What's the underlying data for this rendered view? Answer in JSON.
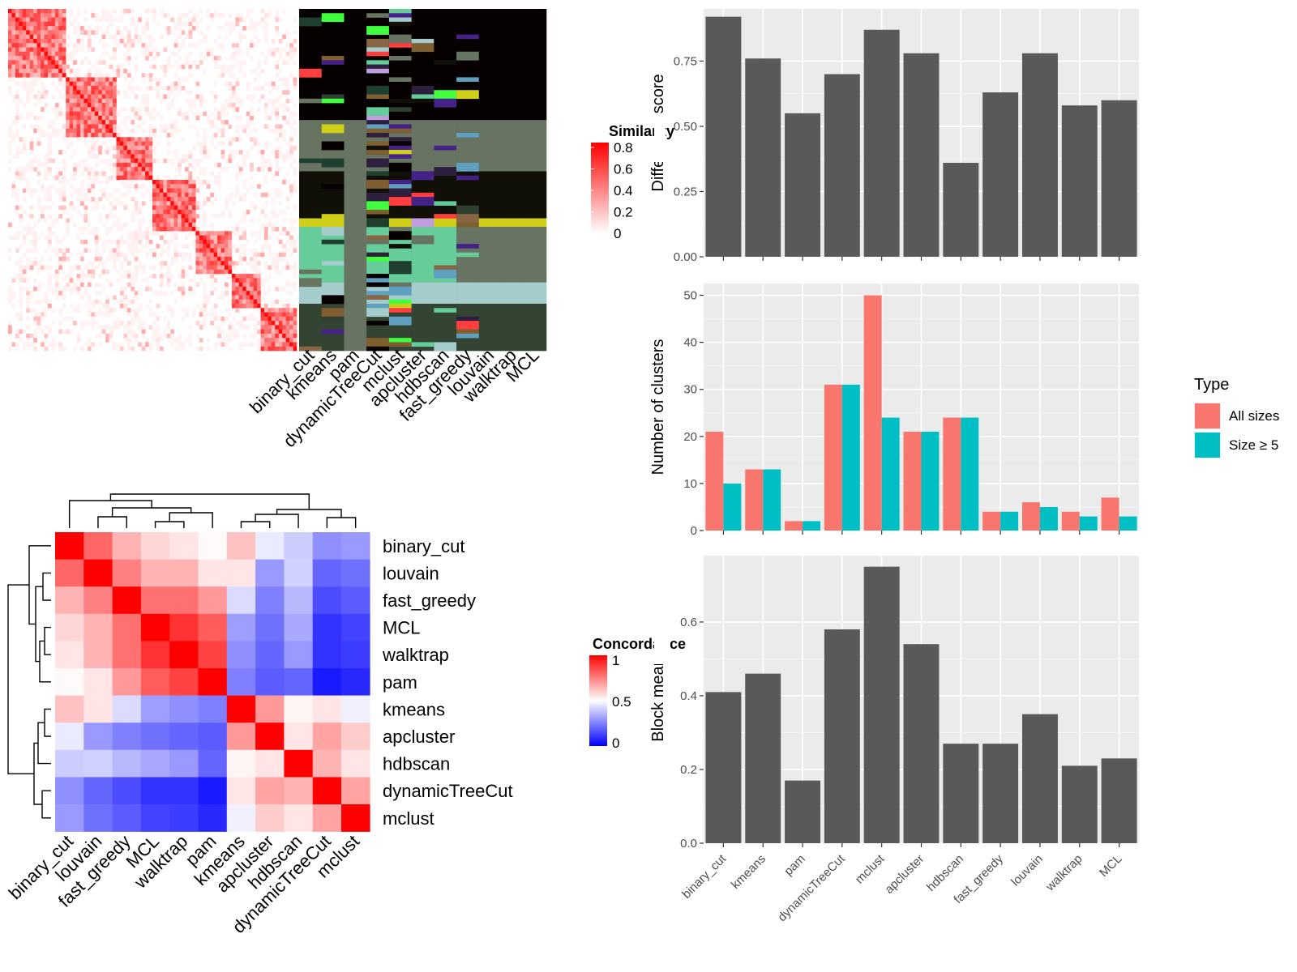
{
  "chart_data": [
    {
      "id": "similarity_heatmap",
      "type": "heatmap",
      "title": "",
      "legend_title": "Similarity",
      "legend_ticks": [
        0.8,
        0.6,
        0.4,
        0.2,
        0
      ],
      "colors": {
        "low": "#ffffff",
        "high": "#ff0000"
      }
    },
    {
      "id": "cluster_labels",
      "type": "heatmap",
      "methods": [
        "binary_cut",
        "kmeans",
        "pam",
        "dynamicTreeCut",
        "mclust",
        "apcluster",
        "hdbscan",
        "fast_greedy",
        "louvain",
        "walktrap",
        "MCL"
      ]
    },
    {
      "id": "concordance_heatmap",
      "type": "heatmap",
      "legend_title": "Concordance",
      "legend_ticks": [
        1,
        0.5,
        0
      ],
      "colors": {
        "low": "#0000ff",
        "mid": "#ffffff",
        "high": "#ff0000"
      },
      "row_order": [
        "binary_cut",
        "louvain",
        "fast_greedy",
        "MCL",
        "walktrap",
        "pam",
        "kmeans",
        "apcluster",
        "hdbscan",
        "dynamicTreeCut",
        "mclust"
      ],
      "col_order": [
        "binary_cut",
        "louvain",
        "fast_greedy",
        "MCL",
        "walktrap",
        "pam",
        "kmeans",
        "apcluster",
        "hdbscan",
        "dynamicTreeCut",
        "mclust"
      ],
      "values": [
        [
          1.0,
          0.8,
          0.65,
          0.58,
          0.55,
          0.51,
          0.62,
          0.46,
          0.4,
          0.28,
          0.3
        ],
        [
          0.8,
          1.0,
          0.75,
          0.65,
          0.65,
          0.55,
          0.55,
          0.3,
          0.41,
          0.2,
          0.22
        ],
        [
          0.65,
          0.75,
          1.0,
          0.78,
          0.78,
          0.7,
          0.43,
          0.25,
          0.36,
          0.15,
          0.18
        ],
        [
          0.58,
          0.65,
          0.78,
          1.0,
          0.9,
          0.82,
          0.31,
          0.22,
          0.33,
          0.1,
          0.13
        ],
        [
          0.55,
          0.65,
          0.78,
          0.9,
          1.0,
          0.87,
          0.28,
          0.2,
          0.3,
          0.1,
          0.12
        ],
        [
          0.51,
          0.55,
          0.7,
          0.82,
          0.87,
          1.0,
          0.25,
          0.18,
          0.2,
          0.05,
          0.08
        ],
        [
          0.62,
          0.55,
          0.43,
          0.31,
          0.28,
          0.25,
          1.0,
          0.7,
          0.52,
          0.55,
          0.47
        ],
        [
          0.46,
          0.3,
          0.25,
          0.22,
          0.2,
          0.18,
          0.7,
          1.0,
          0.55,
          0.68,
          0.6
        ],
        [
          0.4,
          0.41,
          0.36,
          0.33,
          0.3,
          0.2,
          0.52,
          0.55,
          1.0,
          0.65,
          0.55
        ],
        [
          0.28,
          0.2,
          0.15,
          0.1,
          0.1,
          0.05,
          0.55,
          0.68,
          0.65,
          1.0,
          0.68
        ],
        [
          0.3,
          0.22,
          0.18,
          0.13,
          0.12,
          0.08,
          0.47,
          0.6,
          0.55,
          0.68,
          1.0
        ]
      ]
    },
    {
      "id": "difference_score",
      "type": "bar",
      "categories": [
        "binary_cut",
        "kmeans",
        "pam",
        "dynamicTreeCut",
        "mclust",
        "apcluster",
        "hdbscan",
        "fast_greedy",
        "louvain",
        "walktrap",
        "MCL"
      ],
      "values": [
        0.92,
        0.76,
        0.55,
        0.7,
        0.87,
        0.78,
        0.36,
        0.63,
        0.78,
        0.58,
        0.6
      ],
      "xlabel": "",
      "ylabel": "Difference score",
      "ylim": [
        0,
        0.95
      ],
      "yticks": [
        0,
        0.25,
        0.5,
        0.75
      ],
      "ytick_labels": [
        "0.00",
        "0.25",
        "0.50",
        "0.75"
      ],
      "bar_color": "#595959",
      "grid": true
    },
    {
      "id": "number_of_clusters",
      "type": "bar",
      "categories": [
        "binary_cut",
        "kmeans",
        "pam",
        "dynamicTreeCut",
        "mclust",
        "apcluster",
        "hdbscan",
        "fast_greedy",
        "louvain",
        "walktrap",
        "MCL"
      ],
      "series": [
        {
          "name": "All sizes",
          "values": [
            21,
            13,
            2,
            31,
            50,
            21,
            24,
            4,
            6,
            4,
            7
          ],
          "color": "#f8766d"
        },
        {
          "name": "Size ≥ 5",
          "values": [
            10,
            13,
            2,
            31,
            24,
            21,
            24,
            4,
            5,
            3,
            3
          ],
          "color": "#00bfc4"
        }
      ],
      "ylabel": "Number of clusters",
      "ylim": [
        0,
        52.5
      ],
      "yticks": [
        0,
        10,
        20,
        30,
        40,
        50
      ],
      "legend_title": "Type",
      "legend_position": "right",
      "grid": true
    },
    {
      "id": "block_mean",
      "type": "bar",
      "categories": [
        "binary_cut",
        "kmeans",
        "pam",
        "dynamicTreeCut",
        "mclust",
        "apcluster",
        "hdbscan",
        "fast_greedy",
        "louvain",
        "walktrap",
        "MCL"
      ],
      "values": [
        0.41,
        0.46,
        0.17,
        0.58,
        0.75,
        0.54,
        0.27,
        0.27,
        0.35,
        0.21,
        0.23
      ],
      "ylabel": "Block mean",
      "ylim": [
        0,
        0.78
      ],
      "yticks": [
        0,
        0.2,
        0.4,
        0.6
      ],
      "ytick_labels": [
        "0.0",
        "0.2",
        "0.4",
        "0.6"
      ],
      "bar_color": "#595959",
      "grid": true
    }
  ]
}
